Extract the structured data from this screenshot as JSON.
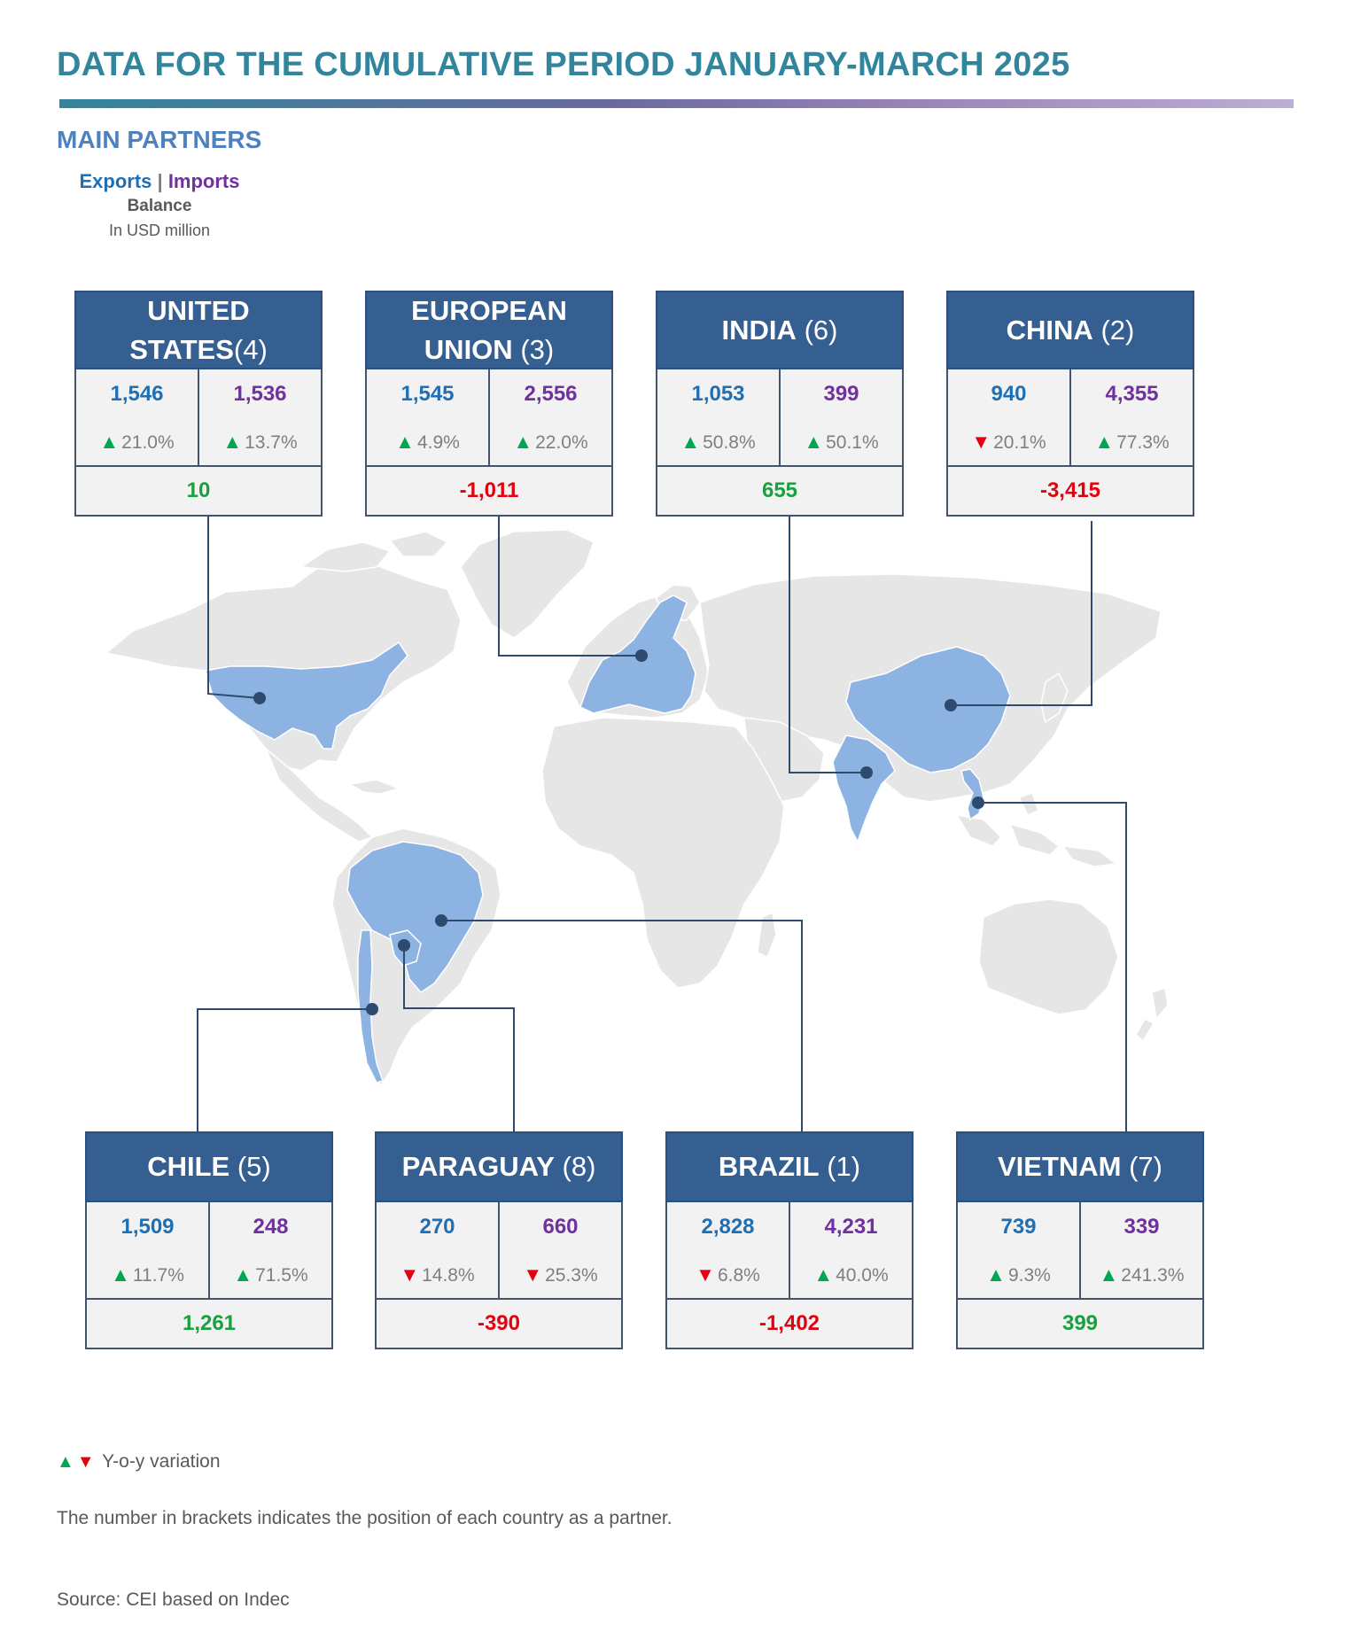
{
  "title": "DATA FOR THE CUMULATIVE PERIOD JANUARY-MARCH 2025",
  "subtitle": "MAIN PARTNERS",
  "legend": {
    "exports": "Exports",
    "separator": "|",
    "imports": "Imports",
    "balance": "Balance",
    "unit": "In USD million"
  },
  "partners": {
    "us": {
      "name_line1": "UNITED",
      "name_line2": "STATES",
      "rank": "(4)",
      "exports": "1,546",
      "imports": "1,536",
      "exp_var": "21.0%",
      "exp_dir": "up",
      "imp_var": "13.7%",
      "imp_dir": "up",
      "balance": "10",
      "balance_sign": "positive"
    },
    "eu": {
      "name_line1": "EUROPEAN",
      "name_line2": "UNION",
      "rank": "(3)",
      "exports": "1,545",
      "imports": "2,556",
      "exp_var": "4.9%",
      "exp_dir": "up",
      "imp_var": "22.0%",
      "imp_dir": "up",
      "balance": "-1,011",
      "balance_sign": "negative"
    },
    "india": {
      "name": "INDIA",
      "rank": "(6)",
      "exports": "1,053",
      "imports": "399",
      "exp_var": "50.8%",
      "exp_dir": "up",
      "imp_var": "50.1%",
      "imp_dir": "up",
      "balance": "655",
      "balance_sign": "positive"
    },
    "china": {
      "name": "CHINA",
      "rank": "(2)",
      "exports": "940",
      "imports": "4,355",
      "exp_var": "20.1%",
      "exp_dir": "down",
      "imp_var": "77.3%",
      "imp_dir": "up",
      "balance": "-3,415",
      "balance_sign": "negative"
    },
    "chile": {
      "name": "CHILE",
      "rank": "(5)",
      "exports": "1,509",
      "imports": "248",
      "exp_var": "11.7%",
      "exp_dir": "up",
      "imp_var": "71.5%",
      "imp_dir": "up",
      "balance": "1,261",
      "balance_sign": "positive"
    },
    "paraguay": {
      "name": "PARAGUAY",
      "rank": "(8)",
      "exports": "270",
      "imports": "660",
      "exp_var": "14.8%",
      "exp_dir": "down",
      "imp_var": "25.3%",
      "imp_dir": "down",
      "balance": "-390",
      "balance_sign": "negative"
    },
    "brazil": {
      "name": "BRAZIL",
      "rank": "(1)",
      "exports": "2,828",
      "imports": "4,231",
      "exp_var": "6.8%",
      "exp_dir": "down",
      "imp_var": "40.0%",
      "imp_dir": "up",
      "balance": "-1,402",
      "balance_sign": "negative"
    },
    "vietnam": {
      "name": "VIETNAM",
      "rank": "(7)",
      "exports": "739",
      "imports": "339",
      "exp_var": "9.3%",
      "exp_dir": "up",
      "imp_var": "241.3%",
      "imp_dir": "up",
      "balance": "399",
      "balance_sign": "positive"
    }
  },
  "footer": {
    "variation_label": "Y-o-y variation",
    "note": "The number in brackets indicates the position of each country as a partner.",
    "source": "Source: CEI based on Indec"
  },
  "colors": {
    "highlight_country": "#8db3e2",
    "land": "#e6e6e6",
    "header": "#355f91",
    "exports": "#1f6fb2",
    "imports": "#7030a0",
    "positive": "#1aa040",
    "negative": "#e3000f"
  }
}
